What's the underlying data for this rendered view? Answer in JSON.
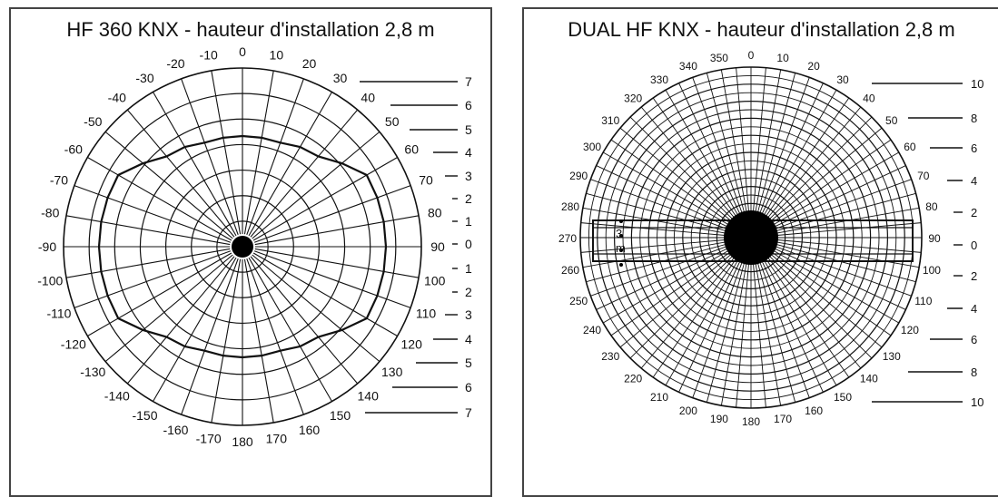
{
  "left": {
    "title": "HF 360 KNX - hauteur d'installation 2,8 m",
    "angle_labels": [
      "0",
      "10",
      "20",
      "30",
      "40",
      "50",
      "60",
      "70",
      "80",
      "90",
      "100",
      "110",
      "120",
      "130",
      "140",
      "150",
      "160",
      "170",
      "180",
      "-170",
      "-160",
      "-150",
      "-140",
      "-130",
      "-120",
      "-110",
      "-100",
      "-90",
      "-80",
      "-70",
      "-60",
      "-50",
      "-40",
      "-30",
      "-20",
      "-10"
    ],
    "scale_labels": [
      "7",
      "6",
      "5",
      "4",
      "3",
      "2",
      "1",
      "0",
      "1",
      "2",
      "3",
      "4",
      "5",
      "6",
      "7"
    ]
  },
  "right": {
    "title": "DUAL HF KNX - hauteur d'installation 2,8 m",
    "angle_labels": [
      "0",
      "10",
      "20",
      "30",
      "40",
      "50",
      "60",
      "70",
      "80",
      "90",
      "100",
      "110",
      "120",
      "130",
      "140",
      "150",
      "160",
      "170",
      "180",
      "190",
      "200",
      "210",
      "220",
      "230",
      "240",
      "250",
      "260",
      "270",
      "280",
      "290",
      "300",
      "310",
      "320",
      "330",
      "340",
      "350"
    ],
    "scale_labels": [
      "10",
      "8",
      "6",
      "4",
      "2",
      "0",
      "2",
      "4",
      "6",
      "8",
      "10"
    ],
    "inner_labels": [
      "3",
      "m"
    ]
  }
}
